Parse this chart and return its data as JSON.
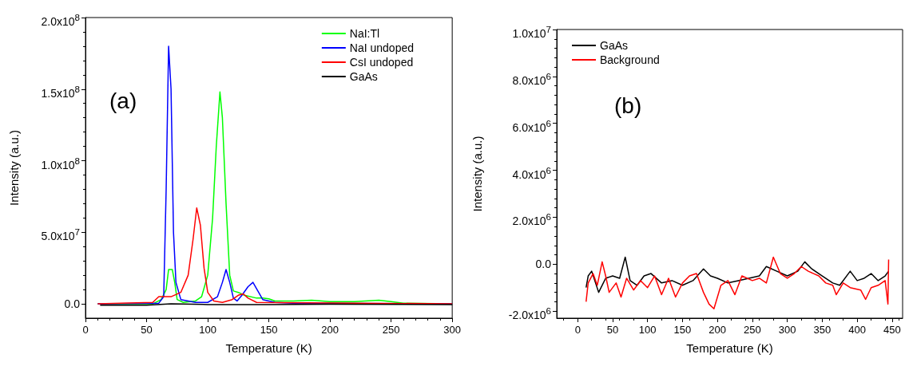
{
  "chart_data": [
    {
      "type": "line",
      "xlabel": "Temperature (K)",
      "ylabel": "Intensity (a.u.)",
      "annotations": [
        "(a)"
      ],
      "xlim": [
        0,
        300
      ],
      "xticks": [
        0,
        50,
        100,
        150,
        200,
        250,
        300
      ],
      "ylim": [
        -10000000,
        200000000
      ],
      "yticks": [
        {
          "value": 0,
          "label": "0.0"
        },
        {
          "value": 50000000,
          "label": "5.0x10$^{7}$"
        },
        {
          "value": 100000000,
          "label": "1.0x10$^{8}$"
        },
        {
          "value": 150000000,
          "label": "1.5x10$^{8}$"
        },
        {
          "value": 200000000,
          "label": "2.0x10$^{8}$"
        }
      ],
      "grid": false,
      "legend": "top right",
      "marker": "none",
      "line_style": "solid",
      "series": [
        {
          "name": "NaI:Tl",
          "color": "#00ff00",
          "x": [
            10,
            55,
            62,
            66,
            68,
            71,
            73,
            75,
            80,
            90,
            95,
            100,
            104,
            107,
            110,
            112,
            115,
            118,
            121,
            125,
            130,
            140,
            145,
            150,
            155,
            170,
            185,
            200,
            220,
            240,
            250,
            260,
            300
          ],
          "values": [
            0,
            0,
            3000000,
            10000000,
            24000000,
            24000000,
            15000000,
            3000000,
            1000000,
            2000000,
            5000000,
            20000000,
            60000000,
            110000000,
            148000000,
            130000000,
            70000000,
            20000000,
            9000000,
            8000000,
            6000000,
            4000000,
            4000000,
            3500000,
            2000000,
            2000000,
            2500000,
            1500000,
            1500000,
            2500000,
            1500000,
            500000,
            0
          ]
        },
        {
          "name": "NaI undoped",
          "color": "#0000ff",
          "x": [
            10,
            60,
            64,
            66,
            68,
            70,
            72,
            74,
            78,
            90,
            100,
            108,
            112,
            115,
            118,
            121,
            124,
            128,
            133,
            137,
            141,
            145,
            155,
            170,
            300
          ],
          "values": [
            0,
            500000,
            5000000,
            80000000,
            180000000,
            150000000,
            50000000,
            15000000,
            3000000,
            1000000,
            1000000,
            5000000,
            15000000,
            24000000,
            15000000,
            4000000,
            2000000,
            6000000,
            12000000,
            15000000,
            9000000,
            3000000,
            1000000,
            500000,
            0
          ]
        },
        {
          "name": "CsI undoped",
          "color": "#ff0000",
          "x": [
            10,
            55,
            60,
            63,
            70,
            78,
            84,
            88,
            91,
            94,
            97,
            100,
            105,
            112,
            120,
            125,
            129,
            133,
            140,
            300
          ],
          "values": [
            0,
            1000000,
            5000000,
            5000000,
            5000000,
            8000000,
            20000000,
            45000000,
            67000000,
            55000000,
            25000000,
            8000000,
            2000000,
            1000000,
            3000000,
            6000000,
            7000000,
            4000000,
            1000000,
            0
          ]
        },
        {
          "name": "GaAs",
          "color": "#000000",
          "x": [
            12,
            50,
            70,
            100,
            150,
            200,
            300
          ],
          "values": [
            -1000000,
            -1000000,
            0,
            -500000,
            -500000,
            -200000,
            -500000
          ]
        }
      ]
    },
    {
      "type": "line",
      "xlabel": "Temperature (K)",
      "ylabel": "Intensity (a.u.)",
      "annotations": [
        "(b)"
      ],
      "xlim": [
        -30,
        465
      ],
      "xticks": [
        0,
        50,
        100,
        150,
        200,
        250,
        300,
        350,
        400,
        450
      ],
      "ylim": [
        -2300000,
        10000000
      ],
      "yticks": [
        {
          "value": -2000000,
          "label": "-2.0x10$^{6}$"
        },
        {
          "value": 0,
          "label": "0.0"
        },
        {
          "value": 2000000,
          "label": "2.0x10$^{6}$"
        },
        {
          "value": 4000000,
          "label": "4.0x10$^{6}$"
        },
        {
          "value": 6000000,
          "label": "6.0x10$^{6}$"
        },
        {
          "value": 8000000,
          "label": "8.0x10$^{6}$"
        },
        {
          "value": 10000000,
          "label": "1.0x10$^{7}$"
        }
      ],
      "grid": false,
      "legend": "top left",
      "marker": "none",
      "line_style": "solid",
      "series": [
        {
          "name": "GaAs",
          "color": "#000000",
          "x": [
            12,
            15,
            20,
            30,
            40,
            50,
            60,
            68,
            75,
            85,
            95,
            105,
            120,
            135,
            150,
            165,
            180,
            190,
            200,
            215,
            230,
            245,
            260,
            270,
            285,
            300,
            315,
            325,
            335,
            350,
            365,
            375,
            390,
            400,
            410,
            420,
            430,
            440,
            445
          ],
          "values": [
            -1000000,
            -500000,
            -300000,
            -1200000,
            -600000,
            -500000,
            -600000,
            300000,
            -700000,
            -900000,
            -500000,
            -400000,
            -800000,
            -700000,
            -900000,
            -700000,
            -200000,
            -500000,
            -600000,
            -800000,
            -700000,
            -600000,
            -500000,
            -100000,
            -300000,
            -500000,
            -300000,
            100000,
            -200000,
            -500000,
            -800000,
            -900000,
            -300000,
            -700000,
            -600000,
            -400000,
            -700000,
            -500000,
            -300000
          ]
        },
        {
          "name": "Background",
          "color": "#ff0000",
          "x": [
            12,
            15,
            22,
            28,
            35,
            40,
            45,
            55,
            62,
            70,
            80,
            90,
            100,
            110,
            120,
            130,
            140,
            150,
            160,
            170,
            180,
            188,
            195,
            205,
            215,
            225,
            235,
            250,
            260,
            270,
            280,
            290,
            300,
            310,
            320,
            330,
            345,
            355,
            365,
            370,
            380,
            390,
            405,
            412,
            420,
            430,
            440,
            444,
            445
          ],
          "values": [
            -1600000,
            -800000,
            -400000,
            -900000,
            100000,
            -500000,
            -1200000,
            -800000,
            -1400000,
            -600000,
            -1100000,
            -700000,
            -1000000,
            -500000,
            -1300000,
            -600000,
            -1400000,
            -800000,
            -500000,
            -400000,
            -1200000,
            -1700000,
            -1900000,
            -900000,
            -700000,
            -1300000,
            -500000,
            -700000,
            -600000,
            -800000,
            300000,
            -400000,
            -600000,
            -400000,
            -100000,
            -300000,
            -500000,
            -800000,
            -900000,
            -1300000,
            -800000,
            -1000000,
            -1100000,
            -1500000,
            -1000000,
            -900000,
            -700000,
            -1700000,
            200000
          ]
        }
      ]
    }
  ]
}
